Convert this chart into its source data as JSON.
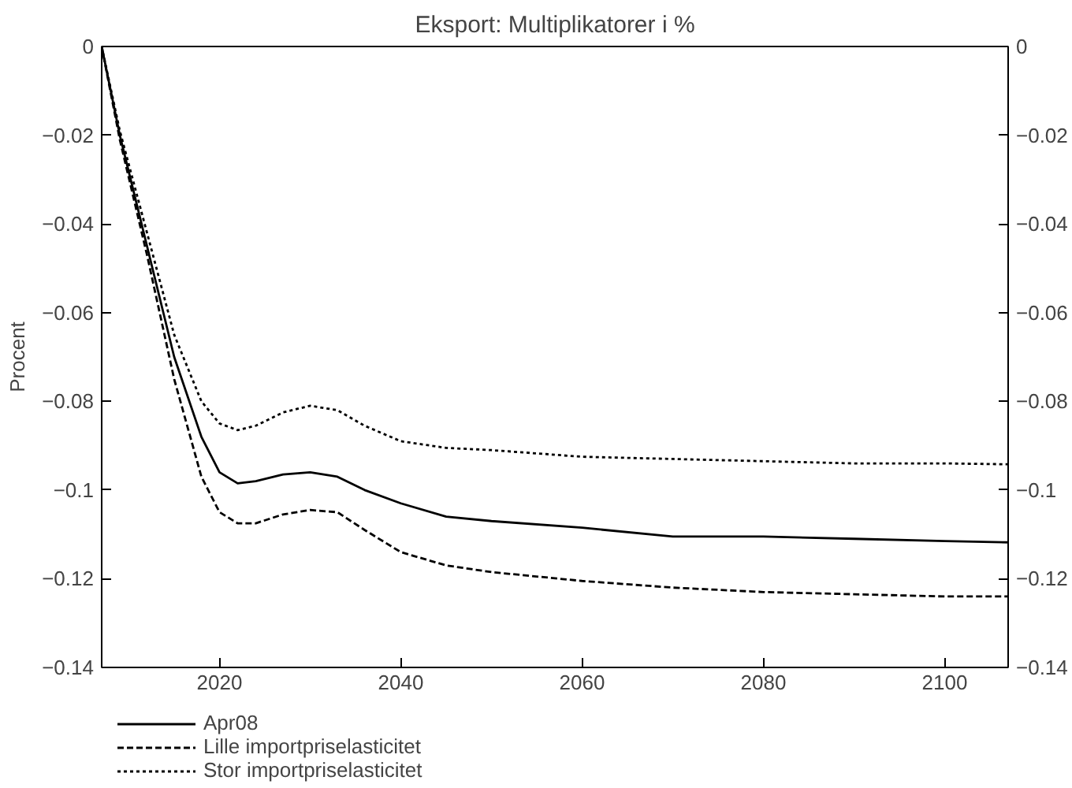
{
  "chart_data": {
    "type": "line",
    "title": "Eksport: Multiplikatorer i %",
    "ylabel": "Procent",
    "x": [
      2007,
      2009,
      2012,
      2015,
      2018,
      2020,
      2022,
      2024,
      2027,
      2030,
      2033,
      2036,
      2040,
      2045,
      2050,
      2060,
      2070,
      2080,
      2090,
      2100,
      2107
    ],
    "series": [
      {
        "name": "Apr08",
        "color": "#000000",
        "line_style": "solid",
        "values": [
          0,
          -0.02,
          -0.045,
          -0.07,
          -0.088,
          -0.096,
          -0.0985,
          -0.098,
          -0.0965,
          -0.096,
          -0.097,
          -0.1,
          -0.103,
          -0.106,
          -0.107,
          -0.1085,
          -0.1105,
          -0.1105,
          -0.111,
          -0.1115,
          -0.1118
        ]
      },
      {
        "name": "Lille importpriselasticitet",
        "color": "#000000",
        "line_style": "dashed",
        "values": [
          0,
          -0.021,
          -0.047,
          -0.075,
          -0.097,
          -0.105,
          -0.1075,
          -0.1075,
          -0.1055,
          -0.1045,
          -0.105,
          -0.109,
          -0.114,
          -0.117,
          -0.1185,
          -0.1205,
          -0.122,
          -0.123,
          -0.1235,
          -0.124,
          -0.124
        ]
      },
      {
        "name": "Stor importpriselasticitet",
        "color": "#000000",
        "line_style": "dotted",
        "values": [
          0,
          -0.019,
          -0.042,
          -0.065,
          -0.08,
          -0.085,
          -0.0865,
          -0.0855,
          -0.0825,
          -0.081,
          -0.082,
          -0.0855,
          -0.089,
          -0.0905,
          -0.091,
          -0.0925,
          -0.093,
          -0.0935,
          -0.094,
          -0.094,
          -0.0942
        ]
      }
    ],
    "xlim": [
      2007,
      2107
    ],
    "xticks": [
      2020,
      2040,
      2060,
      2080,
      2100
    ],
    "ylim": [
      -0.14,
      0
    ],
    "yticks": [
      {
        "value": -0.14,
        "label": "−0.14"
      },
      {
        "value": -0.12,
        "label": "−0.12"
      },
      {
        "value": -0.1,
        "label": "−0.1"
      },
      {
        "value": -0.08,
        "label": "−0.08"
      },
      {
        "value": -0.06,
        "label": "−0.06"
      },
      {
        "value": -0.04,
        "label": "−0.04"
      },
      {
        "value": -0.02,
        "label": "−0.02"
      },
      0
    ],
    "y2lim": [
      -0.14,
      0
    ],
    "y2ticks": [
      {
        "value": -0.14,
        "label": "−0.14"
      },
      {
        "value": -0.12,
        "label": "−0.12"
      },
      {
        "value": -0.1,
        "label": "−0.1"
      },
      {
        "value": -0.08,
        "label": "−0.08"
      },
      {
        "value": -0.06,
        "label": "−0.06"
      },
      {
        "value": -0.04,
        "label": "−0.04"
      },
      {
        "value": -0.02,
        "label": "−0.02"
      },
      0
    ],
    "grid": false,
    "legend": "bottom left"
  }
}
